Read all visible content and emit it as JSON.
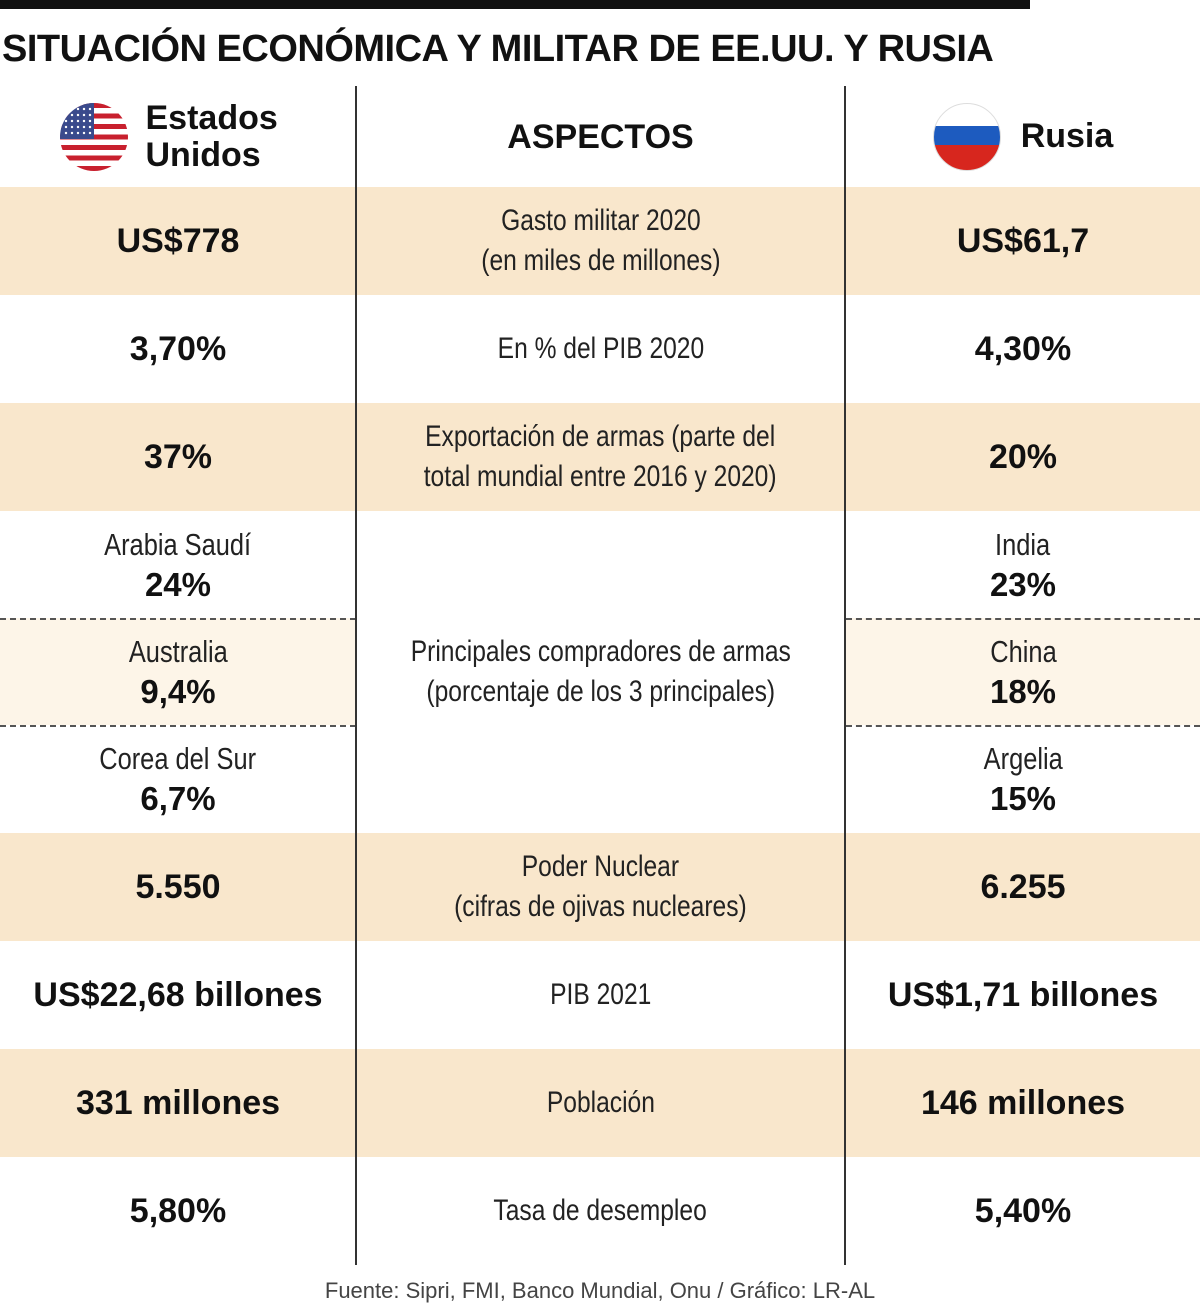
{
  "title": "SITUACIÓN ECONÓMICA Y MILITAR DE EE.UU. Y RUSIA",
  "header": {
    "us_label": "Estados Unidos",
    "aspects_label": "ASPECTOS",
    "ru_label": "Rusia"
  },
  "rows": [
    {
      "us": "US$778",
      "aspect": "Gasto militar 2020 (en miles de millones)",
      "aspect_line1": "Gasto militar 2020",
      "aspect_line2": "(en miles de millones)",
      "ru": "US$61,7"
    },
    {
      "us": "3,70%",
      "aspect": "En % del PIB 2020",
      "ru": "4,30%"
    },
    {
      "us": "37%",
      "aspect_line1": "Exportación de armas (parte del",
      "aspect_line2": "total mundial entre 2016 y 2020)",
      "ru": "20%"
    },
    {
      "us": "5.550",
      "aspect_line1": "Poder Nuclear",
      "aspect_line2": "(cifras de ojivas nucleares)",
      "ru": "6.255"
    },
    {
      "us": "US$22,68 billones",
      "aspect": "PIB 2021",
      "ru": "US$1,71 billones"
    },
    {
      "us": "331 millones",
      "aspect": "Población",
      "ru": "146 millones"
    },
    {
      "us": "5,80%",
      "aspect": "Tasa de desempleo",
      "ru": "5,40%"
    }
  ],
  "buyers": {
    "aspect_line1": "Principales compradores de armas",
    "aspect_line2": "(porcentaje de los 3 principales)",
    "us": [
      {
        "name": "Arabia Saudí",
        "pct": "24%"
      },
      {
        "name": "Australia",
        "pct": "9,4%"
      },
      {
        "name": "Corea del Sur",
        "pct": "6,7%"
      }
    ],
    "ru": [
      {
        "name": "India",
        "pct": "23%"
      },
      {
        "name": "China",
        "pct": "18%"
      },
      {
        "name": "Argelia",
        "pct": "15%"
      }
    ]
  },
  "footer": "Fuente: Sipri, FMI, Banco Mundial, Onu / Gráfico: LR-AL",
  "colors": {
    "shade": "#f9e7cc",
    "buyers_shade": "#fdf5e8",
    "text": "#111111"
  },
  "icons": {
    "us": "us-flag-icon",
    "ru": "russia-flag-icon"
  }
}
